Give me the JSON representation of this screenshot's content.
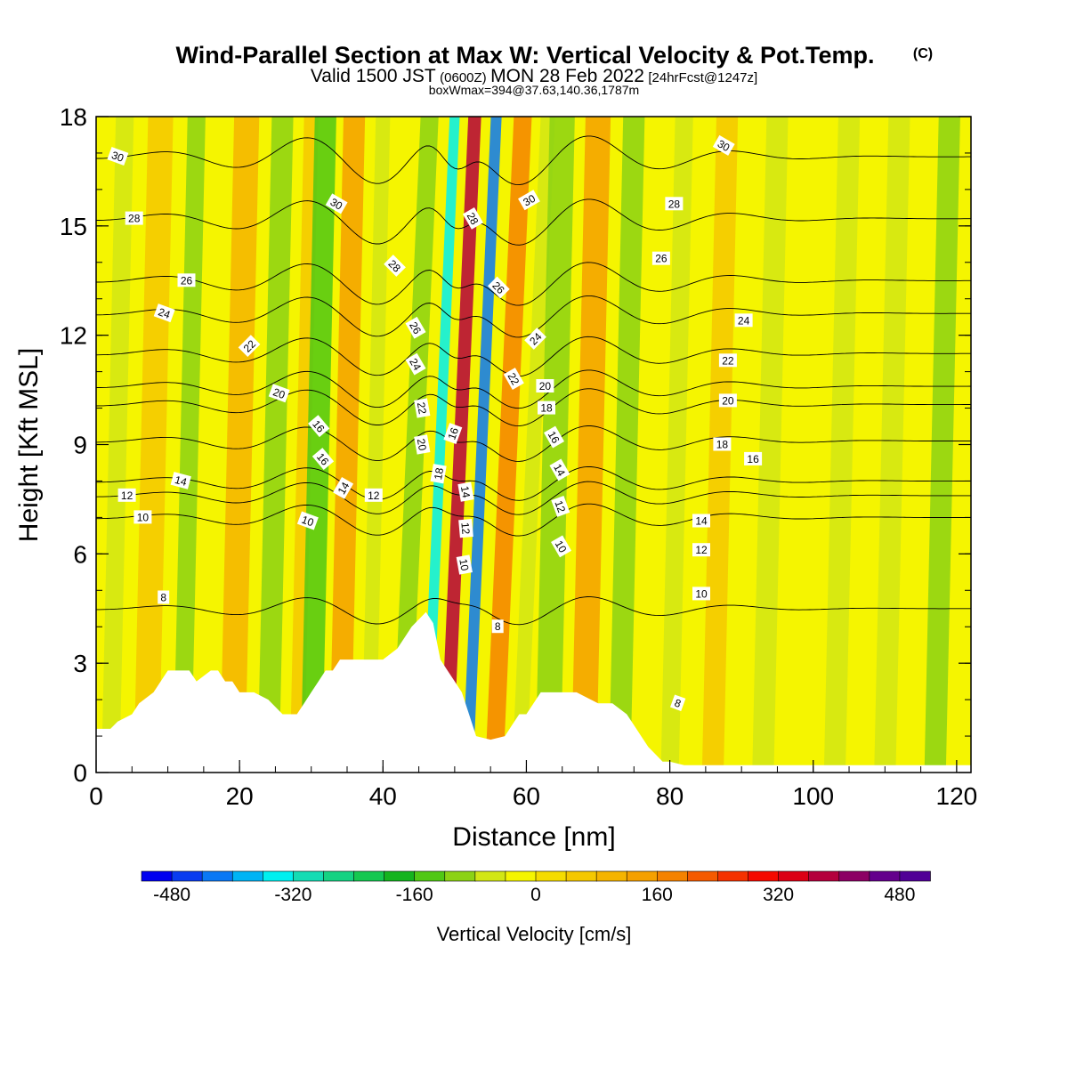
{
  "chart_data": {
    "type": "heatmap",
    "title": "Wind-Parallel Section at Max W: Vertical Velocity & Pot.Temp.",
    "title_mark": "(C)",
    "subtitle_parts": [
      "Valid 1500 JST",
      "(0600Z)",
      "MON 28 Feb 2022",
      "[24hrFcst@1247z]"
    ],
    "subtitle2": "boxWmax=394@37.63,140.36,1787m",
    "xlabel": "Distance [nm]",
    "ylabel": "Height [Kft MSL]",
    "xlim": [
      0,
      122
    ],
    "ylim": [
      0,
      18
    ],
    "x_ticks": [
      "0",
      "20",
      "40",
      "60",
      "80",
      "100",
      "120"
    ],
    "y_ticks": [
      "0",
      "3",
      "6",
      "9",
      "12",
      "15",
      "18"
    ],
    "colorbar": {
      "title": "Vertical Velocity [cm/s]",
      "min": -520,
      "max": 520,
      "colors": [
        "#0000f0",
        "#0a3cf0",
        "#0a78f5",
        "#00b4f5",
        "#00f0f0",
        "#14dcb4",
        "#14d282",
        "#14c850",
        "#14b41e",
        "#50c814",
        "#8cd214",
        "#d2e614",
        "#f5f500",
        "#f5dc00",
        "#f5c800",
        "#f5b400",
        "#f5a000",
        "#f58200",
        "#f55a00",
        "#f53200",
        "#f50a00",
        "#dc0014",
        "#b4003c",
        "#8c0064",
        "#64008c",
        "#500096"
      ],
      "tick_values": [
        -480,
        -320,
        -160,
        0,
        160,
        320,
        480
      ],
      "tick_labels": [
        "-480",
        "-320",
        "-160",
        "0",
        "160",
        "320",
        "480"
      ]
    },
    "vertical_velocity_bands": [
      {
        "x": 2,
        "w": 2.5,
        "value": -50
      },
      {
        "x": 7,
        "w": 3.5,
        "value": 60
      },
      {
        "x": 12,
        "w": 2.5,
        "value": -90
      },
      {
        "x": 19,
        "w": 3.5,
        "value": 110
      },
      {
        "x": 24,
        "w": 3,
        "value": -120
      },
      {
        "x": 28,
        "w": 2,
        "value": 60
      },
      {
        "x": 30,
        "w": 3,
        "value": -130
      },
      {
        "x": 34,
        "w": 3,
        "value": 130
      },
      {
        "x": 38,
        "w": 2,
        "value": -50
      },
      {
        "x": 42.5,
        "w": 2.5,
        "value": -110
      },
      {
        "x": 46,
        "w": 1.4,
        "value": -330
      },
      {
        "x": 48.8,
        "w": 1.8,
        "value": 394
      },
      {
        "x": 51.8,
        "w": 1.5,
        "value": -430
      },
      {
        "x": 55.5,
        "w": 2.5,
        "value": 190
      },
      {
        "x": 59,
        "w": 2,
        "value": -80
      },
      {
        "x": 63,
        "w": 3.5,
        "value": -120
      },
      {
        "x": 68,
        "w": 3.5,
        "value": 130
      },
      {
        "x": 73,
        "w": 3,
        "value": -110
      },
      {
        "x": 80,
        "w": 2.5,
        "value": -60
      },
      {
        "x": 86,
        "w": 3,
        "value": 40
      },
      {
        "x": 93,
        "w": 3,
        "value": -80
      },
      {
        "x": 103,
        "w": 3,
        "value": -60
      },
      {
        "x": 110,
        "w": 3,
        "value": -70
      },
      {
        "x": 117,
        "w": 3,
        "value": -90
      }
    ],
    "terrain": {
      "x": [
        0,
        2,
        3,
        5,
        6,
        8,
        10,
        13,
        14,
        16,
        17,
        18,
        19,
        20,
        22,
        24,
        26,
        27,
        28,
        29,
        30,
        31,
        32,
        33,
        34,
        35,
        36,
        40,
        42,
        43,
        44,
        46,
        47,
        48,
        49,
        50,
        51,
        52,
        53,
        55,
        57,
        58,
        59,
        60,
        61,
        62,
        65,
        67,
        70,
        72,
        74,
        75,
        76,
        77,
        78,
        79,
        80,
        82,
        122
      ],
      "height_kft": [
        1.2,
        1.2,
        1.4,
        1.6,
        1.9,
        2.2,
        2.8,
        2.8,
        2.5,
        2.8,
        2.8,
        2.5,
        2.5,
        2.2,
        2.2,
        2.0,
        1.6,
        1.6,
        1.6,
        1.9,
        2.2,
        2.5,
        2.8,
        2.8,
        3.1,
        3.1,
        3.1,
        3.1,
        3.4,
        3.7,
        4.0,
        4.4,
        4.1,
        3.1,
        2.8,
        2.5,
        2.2,
        1.6,
        1.0,
        0.9,
        1.0,
        1.3,
        1.6,
        1.6,
        1.9,
        2.2,
        2.2,
        2.2,
        1.9,
        1.9,
        1.6,
        1.3,
        1.0,
        0.7,
        0.5,
        0.3,
        0.3,
        0.2,
        0.2
      ]
    },
    "theta_contours": [
      {
        "value": 8,
        "baseline_kft": 4.5
      },
      {
        "value": 10,
        "baseline_kft": 7.0
      },
      {
        "value": 12,
        "baseline_kft": 7.6
      },
      {
        "value": 14,
        "baseline_kft": 8.0
      },
      {
        "value": 16,
        "baseline_kft": 9.1
      },
      {
        "value": 18,
        "baseline_kft": 10.1
      },
      {
        "value": 20,
        "baseline_kft": 10.6
      },
      {
        "value": 22,
        "baseline_kft": 11.5
      },
      {
        "value": 24,
        "baseline_kft": 12.6
      },
      {
        "value": 26,
        "baseline_kft": 13.5
      },
      {
        "value": 28,
        "baseline_kft": 15.2
      },
      {
        "value": 30,
        "baseline_kft": 16.9
      }
    ],
    "contour_labels": [
      {
        "text": "30",
        "x": 3,
        "y": 16.9,
        "rot": 20
      },
      {
        "text": "28",
        "x": 5.3,
        "y": 15.2,
        "rot": 0
      },
      {
        "text": "26",
        "x": 12.6,
        "y": 13.5,
        "rot": 0
      },
      {
        "text": "24",
        "x": 9.5,
        "y": 12.6,
        "rot": 20
      },
      {
        "text": "22",
        "x": 21.4,
        "y": 11.7,
        "rot": -45
      },
      {
        "text": "20",
        "x": 25.5,
        "y": 10.4,
        "rot": 20
      },
      {
        "text": "16",
        "x": 31.0,
        "y": 9.5,
        "rot": 50
      },
      {
        "text": "16",
        "x": 31.6,
        "y": 8.6,
        "rot": 50
      },
      {
        "text": "14",
        "x": 11.8,
        "y": 8.0,
        "rot": 15
      },
      {
        "text": "14",
        "x": 34.5,
        "y": 7.8,
        "rot": -60
      },
      {
        "text": "12",
        "x": 38.7,
        "y": 7.6,
        "rot": 0
      },
      {
        "text": "12",
        "x": 4.3,
        "y": 7.6,
        "rot": 0
      },
      {
        "text": "10",
        "x": 6.5,
        "y": 7.0,
        "rot": 0
      },
      {
        "text": "10",
        "x": 29.5,
        "y": 6.9,
        "rot": 20
      },
      {
        "text": "8",
        "x": 9.4,
        "y": 4.8,
        "rot": 0
      },
      {
        "text": "30",
        "x": 33.5,
        "y": 15.6,
        "rot": 30
      },
      {
        "text": "28",
        "x": 41.6,
        "y": 13.9,
        "rot": 45
      },
      {
        "text": "26",
        "x": 44.5,
        "y": 12.2,
        "rot": 60
      },
      {
        "text": "24",
        "x": 44.5,
        "y": 11.2,
        "rot": 60
      },
      {
        "text": "22",
        "x": 45.4,
        "y": 10.0,
        "rot": 80
      },
      {
        "text": "20",
        "x": 45.4,
        "y": 9.0,
        "rot": 80
      },
      {
        "text": "18",
        "x": 47.8,
        "y": 8.2,
        "rot": -80
      },
      {
        "text": "16",
        "x": 49.8,
        "y": 9.3,
        "rot": -70
      },
      {
        "text": "14",
        "x": 51.5,
        "y": 7.7,
        "rot": 80
      },
      {
        "text": "12",
        "x": 51.5,
        "y": 6.7,
        "rot": 85
      },
      {
        "text": "10",
        "x": 51.3,
        "y": 5.7,
        "rot": 80
      },
      {
        "text": "8",
        "x": 56.0,
        "y": 4.0,
        "rot": 0
      },
      {
        "text": "28",
        "x": 52.5,
        "y": 15.2,
        "rot": 60
      },
      {
        "text": "26",
        "x": 56.1,
        "y": 13.3,
        "rot": 45
      },
      {
        "text": "30",
        "x": 60.4,
        "y": 15.7,
        "rot": -30
      },
      {
        "text": "24",
        "x": 61.3,
        "y": 11.9,
        "rot": -45
      },
      {
        "text": "22",
        "x": 58.2,
        "y": 10.8,
        "rot": 60
      },
      {
        "text": "20",
        "x": 62.6,
        "y": 10.6,
        "rot": 0
      },
      {
        "text": "18",
        "x": 62.8,
        "y": 10.0,
        "rot": 0
      },
      {
        "text": "16",
        "x": 63.8,
        "y": 9.2,
        "rot": 60
      },
      {
        "text": "14",
        "x": 64.6,
        "y": 8.3,
        "rot": 60
      },
      {
        "text": "12",
        "x": 64.7,
        "y": 7.3,
        "rot": 70
      },
      {
        "text": "10",
        "x": 64.8,
        "y": 6.2,
        "rot": 60
      },
      {
        "text": "30",
        "x": 87.5,
        "y": 17.2,
        "rot": 30
      },
      {
        "text": "28",
        "x": 80.6,
        "y": 15.6,
        "rot": 0
      },
      {
        "text": "26",
        "x": 78.8,
        "y": 14.1,
        "rot": 0
      },
      {
        "text": "24",
        "x": 90.3,
        "y": 12.4,
        "rot": 0
      },
      {
        "text": "22",
        "x": 88.1,
        "y": 11.3,
        "rot": 0
      },
      {
        "text": "20",
        "x": 88.1,
        "y": 10.2,
        "rot": 0
      },
      {
        "text": "18",
        "x": 87.3,
        "y": 9.0,
        "rot": 0
      },
      {
        "text": "16",
        "x": 91.6,
        "y": 8.6,
        "rot": 0
      },
      {
        "text": "14",
        "x": 84.4,
        "y": 6.9,
        "rot": 0
      },
      {
        "text": "12",
        "x": 84.4,
        "y": 6.1,
        "rot": 0
      },
      {
        "text": "10",
        "x": 84.4,
        "y": 4.9,
        "rot": 0
      },
      {
        "text": "8",
        "x": 81.1,
        "y": 1.9,
        "rot": 20
      }
    ]
  }
}
